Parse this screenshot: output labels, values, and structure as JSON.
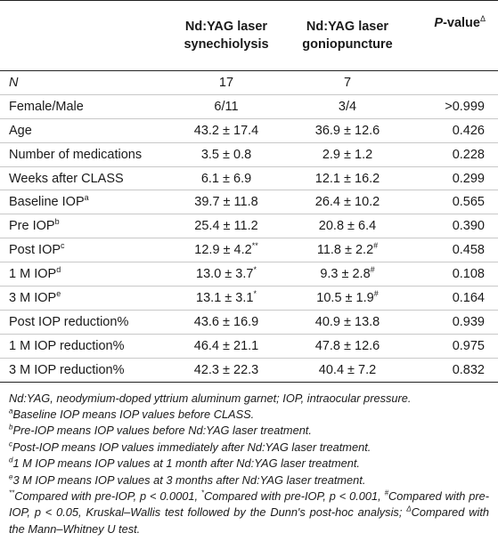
{
  "table": {
    "headers": {
      "col1_line1": "Nd:YAG laser",
      "col1_line2": "synechiolysis",
      "col2_line1": "Nd:YAG laser",
      "col2_line2": "goniopuncture",
      "pval_label": "P",
      "pval_suffix": "-value",
      "pval_mark": "Δ"
    },
    "rows": [
      {
        "label": "N",
        "sup": "",
        "v1": "17",
        "v1_sup": "",
        "v2": "7",
        "v2_sup": "",
        "p": ""
      },
      {
        "label": "Female/Male",
        "sup": "",
        "v1": "6/11",
        "v1_sup": "",
        "v2": "3/4",
        "v2_sup": "",
        "p": ">0.999"
      },
      {
        "label": "Age",
        "sup": "",
        "v1": "43.2 ± 17.4",
        "v1_sup": "",
        "v2": "36.9 ± 12.6",
        "v2_sup": "",
        "p": "0.426"
      },
      {
        "label": "Number of medications",
        "sup": "",
        "v1": "3.5 ± 0.8",
        "v1_sup": "",
        "v2": "2.9 ± 1.2",
        "v2_sup": "",
        "p": "0.228"
      },
      {
        "label": "Weeks after CLASS",
        "sup": "",
        "v1": "6.1 ± 6.9",
        "v1_sup": "",
        "v2": "12.1 ± 16.2",
        "v2_sup": "",
        "p": "0.299"
      },
      {
        "label": "Baseline IOP",
        "sup": "a",
        "v1": "39.7 ± 11.8",
        "v1_sup": "",
        "v2": "26.4 ± 10.2",
        "v2_sup": "",
        "p": "0.565"
      },
      {
        "label": "Pre IOP",
        "sup": "b",
        "v1": "25.4 ± 11.2",
        "v1_sup": "",
        "v2": "20.8 ± 6.4",
        "v2_sup": "",
        "p": "0.390"
      },
      {
        "label": "Post IOP",
        "sup": "c",
        "v1": "12.9 ± 4.2",
        "v1_sup": "**",
        "v2": "11.8 ± 2.2",
        "v2_sup": "#",
        "p": "0.458"
      },
      {
        "label": "1 M IOP",
        "sup": "d",
        "v1": "13.0 ± 3.7",
        "v1_sup": "*",
        "v2": "9.3 ± 2.8",
        "v2_sup": "#",
        "p": "0.108"
      },
      {
        "label": "3 M IOP",
        "sup": "e",
        "v1": "13.1 ± 3.1",
        "v1_sup": "*",
        "v2": "10.5 ± 1.9",
        "v2_sup": "#",
        "p": "0.164"
      },
      {
        "label": "Post IOP reduction%",
        "sup": "",
        "v1": "43.6 ± 16.9",
        "v1_sup": "",
        "v2": "40.9 ± 13.8",
        "v2_sup": "",
        "p": "0.939"
      },
      {
        "label": "1 M IOP reduction%",
        "sup": "",
        "v1": "46.4 ± 21.1",
        "v1_sup": "",
        "v2": "47.8 ± 12.6",
        "v2_sup": "",
        "p": "0.975"
      },
      {
        "label": "3 M IOP reduction%",
        "sup": "",
        "v1": "42.3 ± 22.3",
        "v1_sup": "",
        "v2": "40.4 ± 7.2",
        "v2_sup": "",
        "p": "0.832"
      }
    ]
  },
  "notes": {
    "abbrev": "Nd:YAG, neodymium-doped yttrium aluminum garnet; IOP, intraocular pressure.",
    "a_mark": "a",
    "a_text": "Baseline IOP means IOP values before CLASS.",
    "b_mark": "b",
    "b_text": "Pre-IOP means IOP values before Nd:YAG laser treatment.",
    "c_mark": "c",
    "c_text": "Post-IOP means IOP values immediately after Nd:YAG laser treatment.",
    "d_mark": "d",
    "d_text": "1 M IOP means IOP values at 1 month after Nd:YAG laser treatment.",
    "e_mark": "e",
    "e_text": "3 M IOP means IOP values at 3 months after Nd:YAG laser treatment.",
    "sig_mark1": "**",
    "sig_text1": "Compared with pre-IOP, p < 0.0001, ",
    "sig_mark2": "*",
    "sig_text2": "Compared with pre-IOP, p < 0.001, ",
    "sig_mark3": "#",
    "sig_text3": "Compared with pre-IOP, p < 0.05, Kruskal–Wallis test followed by the Dunn's post-hoc analysis; ",
    "sig_mark4": "Δ",
    "sig_text4": "Compared with the Mann–Whitney U test."
  }
}
